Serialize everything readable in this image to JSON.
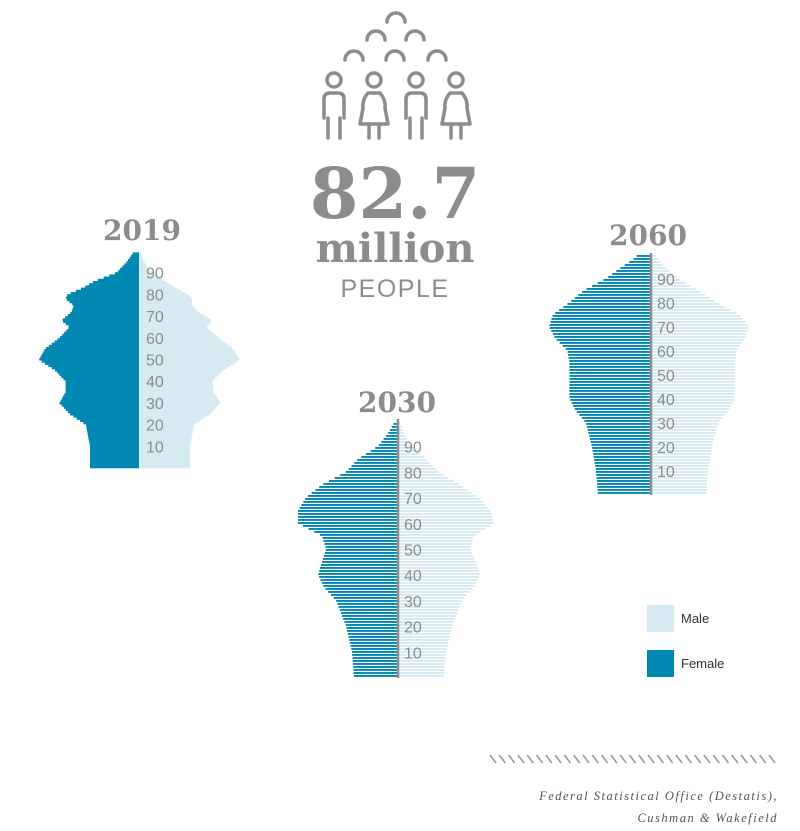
{
  "headline": {
    "value": "82.7",
    "unit": "million",
    "label": "PEOPLE",
    "icon": "people-crowd-icon"
  },
  "legend": {
    "position": "bottom-right",
    "items": [
      {
        "label": "Male",
        "color": "#d6ebf1"
      },
      {
        "label": "Female",
        "color": "#0088b2"
      }
    ]
  },
  "source": {
    "line1": "Federal Statistical Office (Destatis),",
    "line2": "Cushman & Wakefield"
  },
  "colors": {
    "female": "#0088b2",
    "male": "#d6ebf1",
    "text": "#8c8c8c",
    "axis": "#8c8c8c"
  },
  "chart_data": [
    {
      "type": "bar",
      "orientation": "horizontal",
      "title": "2019",
      "xlabel": "",
      "ylabel": "",
      "age_ticks": [
        "10",
        "20",
        "30",
        "40",
        "50",
        "60",
        "70",
        "80",
        "90"
      ],
      "ylim": [
        0,
        100
      ],
      "series": [
        {
          "name": "Female",
          "ages": [
            0,
            10,
            20,
            25,
            30,
            35,
            40,
            45,
            50,
            55,
            60,
            65,
            68,
            72,
            75,
            78,
            80,
            83,
            86,
            90,
            95,
            99
          ],
          "values": [
            48,
            48,
            52,
            68,
            78,
            72,
            72,
            82,
            98,
            92,
            78,
            68,
            76,
            66,
            64,
            72,
            70,
            55,
            44,
            22,
            12,
            6
          ]
        },
        {
          "name": "Male",
          "ages": [
            0,
            10,
            20,
            25,
            30,
            35,
            40,
            45,
            50,
            55,
            60,
            65,
            68,
            72,
            75,
            78,
            80,
            83,
            86,
            90,
            95,
            99
          ],
          "values": [
            50,
            50,
            54,
            70,
            80,
            73,
            72,
            82,
            99,
            92,
            78,
            66,
            72,
            58,
            52,
            52,
            48,
            36,
            26,
            12,
            5,
            2
          ]
        }
      ]
    },
    {
      "type": "bar",
      "orientation": "horizontal",
      "title": "2030",
      "xlabel": "",
      "ylabel": "",
      "age_ticks": [
        "10",
        "20",
        "30",
        "40",
        "50",
        "60",
        "70",
        "80",
        "90"
      ],
      "ylim": [
        0,
        100
      ],
      "series": [
        {
          "name": "Female",
          "ages": [
            0,
            10,
            20,
            30,
            35,
            40,
            45,
            50,
            55,
            60,
            65,
            70,
            75,
            80,
            85,
            90,
            95,
            99
          ],
          "values": [
            44,
            46,
            52,
            62,
            74,
            80,
            76,
            72,
            76,
            100,
            100,
            92,
            76,
            52,
            40,
            20,
            10,
            4
          ]
        },
        {
          "name": "Male",
          "ages": [
            0,
            10,
            20,
            30,
            35,
            40,
            45,
            50,
            55,
            60,
            65,
            70,
            75,
            80,
            85,
            90,
            95,
            99
          ],
          "values": [
            46,
            48,
            54,
            64,
            76,
            82,
            78,
            72,
            76,
            96,
            92,
            80,
            62,
            40,
            28,
            13,
            6,
            2
          ]
        }
      ]
    },
    {
      "type": "bar",
      "orientation": "horizontal",
      "title": "2060",
      "xlabel": "",
      "ylabel": "",
      "age_ticks": [
        "10",
        "20",
        "30",
        "40",
        "50",
        "60",
        "70",
        "80",
        "90"
      ],
      "ylim": [
        0,
        100
      ],
      "series": [
        {
          "name": "Female",
          "ages": [
            0,
            10,
            20,
            30,
            35,
            40,
            45,
            50,
            55,
            60,
            65,
            70,
            75,
            80,
            85,
            90,
            95,
            99
          ],
          "values": [
            52,
            54,
            58,
            64,
            74,
            80,
            80,
            80,
            80,
            82,
            94,
            100,
            96,
            80,
            66,
            44,
            28,
            14
          ]
        },
        {
          "name": "Male",
          "ages": [
            0,
            10,
            20,
            30,
            35,
            40,
            45,
            50,
            55,
            60,
            65,
            70,
            75,
            80,
            85,
            90,
            95,
            99
          ],
          "values": [
            54,
            56,
            60,
            66,
            76,
            82,
            82,
            82,
            82,
            84,
            92,
            96,
            86,
            64,
            46,
            26,
            13,
            5
          ]
        }
      ]
    }
  ]
}
